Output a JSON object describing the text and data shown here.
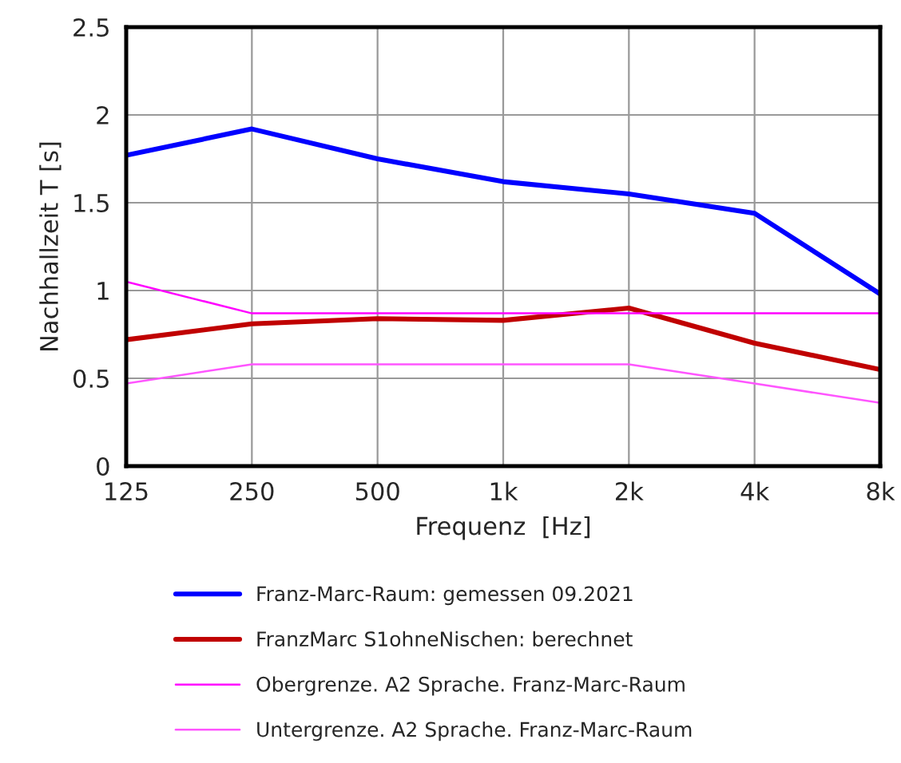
{
  "chart_data": {
    "type": "line",
    "xlabel": "Frequenz  [Hz]",
    "ylabel": "Nachhallzeit T [s]",
    "categories": [
      "125",
      "250",
      "500",
      "1k",
      "2k",
      "4k",
      "8k"
    ],
    "series": [
      {
        "name": "Franz-Marc-Raum: gemessen 09.2021",
        "color": "#0000ff",
        "values": [
          1.77,
          1.92,
          1.75,
          1.62,
          1.55,
          1.44,
          0.98
        ]
      },
      {
        "name": "FranzMarc S1ohneNischen: berechnet",
        "color": "#c00000",
        "values": [
          0.72,
          0.81,
          0.84,
          0.83,
          0.9,
          0.7,
          0.55
        ]
      },
      {
        "name": "Obergrenze. A2 Sprache. Franz-Marc-Raum",
        "color": "#ff00ff",
        "values": [
          1.05,
          0.87,
          0.87,
          0.87,
          0.87,
          0.87,
          0.87
        ]
      },
      {
        "name": "Untergrenze. A2 Sprache. Franz-Marc-Raum",
        "color": "#ff55ff",
        "values": [
          0.47,
          0.58,
          0.58,
          0.58,
          0.58,
          0.47,
          0.36
        ]
      }
    ],
    "ylim": [
      0,
      2.5
    ],
    "yticks": [
      0,
      0.5,
      1,
      1.5,
      2,
      2.5
    ],
    "grid": true,
    "legend": "bottom",
    "marker": "none",
    "line_style": "solid"
  }
}
